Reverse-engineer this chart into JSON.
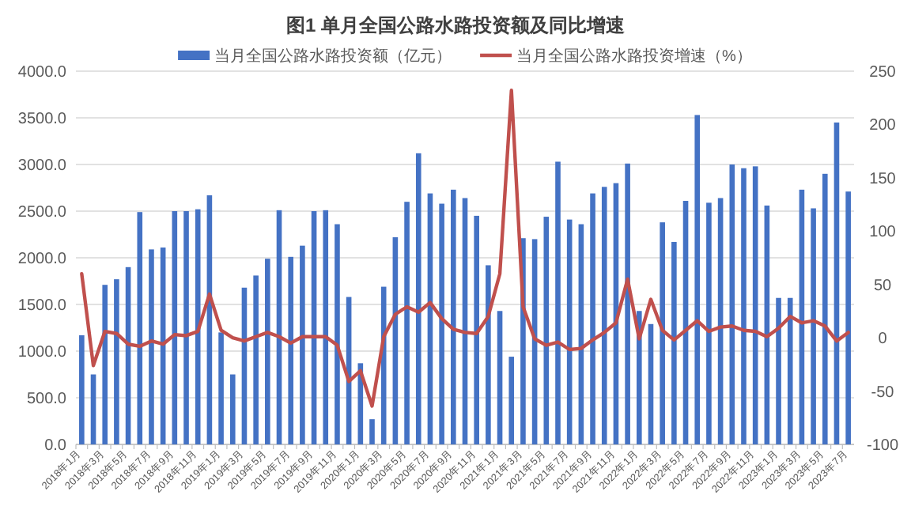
{
  "chart_data": {
    "type": "bar",
    "title": "图1 单月全国公路水路投资额及同比增速",
    "categories": [
      "2018年1月",
      null,
      "2018年3月",
      null,
      "2018年5月",
      null,
      "2018年7月",
      null,
      "2018年9月",
      null,
      "2018年11月",
      null,
      "2019年1月",
      null,
      "2019年3月",
      null,
      "2019年5月",
      null,
      "2019年7月",
      null,
      "2019年9月",
      null,
      "2019年11月",
      null,
      "2020年1月",
      null,
      "2020年3月",
      null,
      "2020年5月",
      null,
      "2020年7月",
      null,
      "2020年9月",
      null,
      "2020年11月",
      null,
      "2021年1月",
      null,
      "2021年3月",
      null,
      "2021年5月",
      null,
      "2021年7月",
      null,
      "2021年9月",
      null,
      "2021年11月",
      null,
      "2022年1月",
      null,
      "2022年3月",
      null,
      "2022年5月",
      null,
      "2022年7月",
      null,
      "2022年9月",
      null,
      "2022年11月",
      null,
      "2023年1月",
      null,
      "2023年3月",
      null,
      "2023年5月",
      null,
      "2023年7月"
    ],
    "series": [
      {
        "name": "当月全国公路水路投资额（亿元）",
        "color": "#4472c4",
        "values": [
          1170,
          750,
          1710,
          1770,
          1900,
          2490,
          2090,
          2110,
          2500,
          2500,
          2520,
          2670,
          1200,
          750,
          1680,
          1810,
          1990,
          2510,
          2010,
          2130,
          2500,
          2510,
          2360,
          1580,
          870,
          270,
          1690,
          2220,
          2600,
          3120,
          2690,
          2580,
          2730,
          2640,
          2450,
          1920,
          1430,
          940,
          2210,
          2200,
          2440,
          3030,
          2410,
          2360,
          2690,
          2760,
          2800,
          3010,
          1430,
          1290,
          2380,
          2170,
          2610,
          3530,
          2590,
          2640,
          3000,
          2960,
          2980,
          2560,
          1570,
          1570,
          2730,
          2530,
          2900,
          3450,
          2710
        ]
      },
      {
        "name": "当月全国公路水路投资增速（%）",
        "type": "line",
        "axis": "y2",
        "color": "#c0504d",
        "values": [
          60,
          -26,
          6,
          4,
          -6,
          -8,
          -3,
          -6,
          3,
          2,
          6,
          41,
          7,
          0,
          -3,
          1,
          5,
          1,
          -5,
          1,
          1,
          1,
          -7,
          -41,
          -31,
          -64,
          1,
          22,
          29,
          24,
          33,
          18,
          8,
          5,
          4,
          20,
          60,
          232,
          29,
          -1,
          -7,
          -4,
          -11,
          -10,
          -2,
          5,
          14,
          55,
          -1,
          36,
          7,
          -2,
          7,
          16,
          6,
          10,
          11,
          7,
          6,
          1,
          9,
          20,
          14,
          16,
          11,
          -3,
          5
        ]
      }
    ],
    "ylim": [
      0,
      4000
    ],
    "yticks": [
      {
        "value": 0,
        "label": "0.0"
      },
      {
        "value": 500,
        "label": "500.0"
      },
      {
        "value": 1000,
        "label": "1000.0"
      },
      {
        "value": 1500,
        "label": "1500.0"
      },
      {
        "value": 2000,
        "label": "2000.0"
      },
      {
        "value": 2500,
        "label": "2500.0"
      },
      {
        "value": 3000,
        "label": "3000.0"
      },
      {
        "value": 3500,
        "label": "3500.0"
      },
      {
        "value": 4000,
        "label": "4000.0"
      }
    ],
    "y2lim": [
      -100,
      250
    ],
    "y2ticks": [
      -100,
      -50,
      0,
      50,
      100,
      150,
      200,
      250
    ],
    "grid": "y",
    "legend": "top"
  }
}
